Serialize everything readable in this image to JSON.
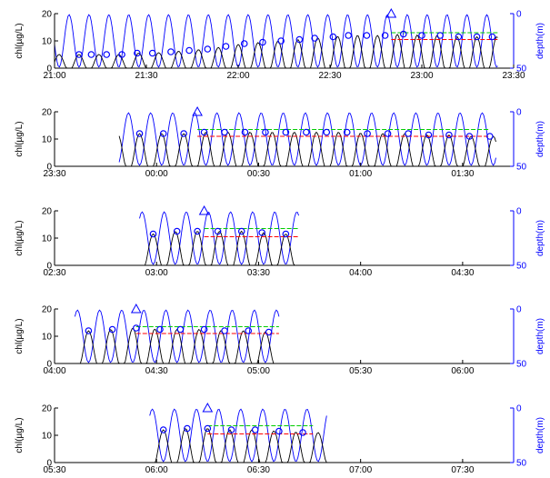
{
  "chart_data": {
    "type": "line",
    "colors": {
      "chl": "#000000",
      "depth": "#0000ff",
      "marker": "#0000ff",
      "upper_ref": "#00cc00",
      "lower_ref": "#ff0000",
      "axis": "#000000",
      "right_axis": "#0000ff"
    },
    "left_ylabel": "chl(µg/L)",
    "right_ylabel": "depth(m)",
    "left_ylim": [
      0,
      20
    ],
    "left_yticks": [
      "0",
      "10",
      "20"
    ],
    "right_ylim": [
      0,
      50
    ],
    "right_yticks": [
      "0",
      "50"
    ],
    "right_axis_reversed": true,
    "panels": [
      {
        "x_ticks": [
          "21:00",
          "21:30",
          "22:00",
          "22:30",
          "23:00",
          "23:30"
        ],
        "x_range": [
          "21:00",
          "23:30"
        ],
        "data_start": "21:00",
        "data_end": "23:25",
        "cycle_minutes": 6.5,
        "chl_markers": [
          {
            "t": "21:08",
            "chl": 5
          },
          {
            "t": "21:12",
            "chl": 5
          },
          {
            "t": "21:17",
            "chl": 5
          },
          {
            "t": "21:22",
            "chl": 5
          },
          {
            "t": "21:27",
            "chl": 5.5
          },
          {
            "t": "21:32",
            "chl": 5.5
          },
          {
            "t": "21:38",
            "chl": 6
          },
          {
            "t": "21:44",
            "chl": 6.5
          },
          {
            "t": "21:50",
            "chl": 7
          },
          {
            "t": "21:56",
            "chl": 8
          },
          {
            "t": "22:02",
            "chl": 9
          },
          {
            "t": "22:08",
            "chl": 9.5
          },
          {
            "t": "22:14",
            "chl": 10
          },
          {
            "t": "22:20",
            "chl": 10.5
          },
          {
            "t": "22:25",
            "chl": 11
          },
          {
            "t": "22:31",
            "chl": 11.5
          },
          {
            "t": "22:36",
            "chl": 12
          },
          {
            "t": "22:42",
            "chl": 12
          },
          {
            "t": "22:48",
            "chl": 12
          },
          {
            "t": "22:54",
            "chl": 12.5
          },
          {
            "t": "23:00",
            "chl": 12
          },
          {
            "t": "23:06",
            "chl": 12
          },
          {
            "t": "23:12",
            "chl": 11.5
          },
          {
            "t": "23:18",
            "chl": 11.5
          },
          {
            "t": "23:23",
            "chl": 11.5
          }
        ],
        "ref_lines": {
          "start": "22:50",
          "end": "23:25",
          "upper": 13,
          "lower": 10.5
        },
        "triangle": {
          "t": "22:50",
          "chl": 20
        }
      },
      {
        "x_ticks": [
          "23:30",
          "00:00",
          "00:30",
          "01:00",
          "01:30"
        ],
        "x_range": [
          "23:30",
          "01:45"
        ],
        "data_start": "23:49",
        "data_end": "01:40",
        "cycle_minutes": 6.5,
        "chl_markers": [
          {
            "t": "23:55",
            "chl": 12
          },
          {
            "t": "00:02",
            "chl": 12
          },
          {
            "t": "00:08",
            "chl": 12
          },
          {
            "t": "00:14",
            "chl": 12.5
          },
          {
            "t": "00:20",
            "chl": 12.5
          },
          {
            "t": "00:26",
            "chl": 12.5
          },
          {
            "t": "00:32",
            "chl": 12.5
          },
          {
            "t": "00:38",
            "chl": 12.5
          },
          {
            "t": "00:44",
            "chl": 12.5
          },
          {
            "t": "00:50",
            "chl": 12.5
          },
          {
            "t": "00:56",
            "chl": 12.5
          },
          {
            "t": "01:02",
            "chl": 12
          },
          {
            "t": "01:08",
            "chl": 12
          },
          {
            "t": "01:14",
            "chl": 12
          },
          {
            "t": "01:20",
            "chl": 11.5
          },
          {
            "t": "01:26",
            "chl": 11.5
          },
          {
            "t": "01:32",
            "chl": 11
          },
          {
            "t": "01:38",
            "chl": 11
          }
        ],
        "ref_lines": {
          "start": "00:12",
          "end": "01:38",
          "upper": 13.5,
          "lower": 11
        },
        "triangle": {
          "t": "00:12",
          "chl": 20
        }
      },
      {
        "x_ticks": [
          "02:30",
          "03:00",
          "03:30",
          "04:00",
          "04:30"
        ],
        "x_range": [
          "02:30",
          "04:45"
        ],
        "data_start": "02:55",
        "data_end": "03:42",
        "cycle_minutes": 6.5,
        "chl_markers": [
          {
            "t": "02:59",
            "chl": 11.5
          },
          {
            "t": "03:06",
            "chl": 12.5
          },
          {
            "t": "03:12",
            "chl": 12.5
          },
          {
            "t": "03:18",
            "chl": 12.5
          },
          {
            "t": "03:25",
            "chl": 12.5
          },
          {
            "t": "03:31",
            "chl": 12
          },
          {
            "t": "03:38",
            "chl": 11.5
          }
        ],
        "ref_lines": {
          "start": "03:14",
          "end": "03:42",
          "upper": 13.5,
          "lower": 10.5
        },
        "triangle": {
          "t": "03:14",
          "chl": 20
        }
      },
      {
        "x_ticks": [
          "04:00",
          "04:30",
          "05:00",
          "05:30",
          "06:00"
        ],
        "x_range": [
          "04:00",
          "06:15"
        ],
        "data_start": "04:06",
        "data_end": "05:06",
        "cycle_minutes": 6.5,
        "chl_markers": [
          {
            "t": "04:10",
            "chl": 12
          },
          {
            "t": "04:17",
            "chl": 12.5
          },
          {
            "t": "04:24",
            "chl": 13
          },
          {
            "t": "04:31",
            "chl": 12.5
          },
          {
            "t": "04:37",
            "chl": 12.5
          },
          {
            "t": "04:44",
            "chl": 12.5
          },
          {
            "t": "04:50",
            "chl": 12
          },
          {
            "t": "04:57",
            "chl": 12
          },
          {
            "t": "05:03",
            "chl": 11.5
          }
        ],
        "ref_lines": {
          "start": "04:24",
          "end": "05:06",
          "upper": 13.5,
          "lower": 11
        },
        "triangle": {
          "t": "04:24",
          "chl": 20
        }
      },
      {
        "x_ticks": [
          "05:30",
          "06:00",
          "06:30",
          "07:00",
          "07:30"
        ],
        "x_range": [
          "05:30",
          "07:45"
        ],
        "data_start": "05:58",
        "data_end": "06:50",
        "cycle_minutes": 6.5,
        "chl_markers": [
          {
            "t": "06:02",
            "chl": 12
          },
          {
            "t": "06:09",
            "chl": 12.5
          },
          {
            "t": "06:15",
            "chl": 12.5
          },
          {
            "t": "06:22",
            "chl": 12
          },
          {
            "t": "06:29",
            "chl": 12
          },
          {
            "t": "06:36",
            "chl": 11.5
          },
          {
            "t": "06:43",
            "chl": 11
          }
        ],
        "ref_lines": {
          "start": "06:15",
          "end": "06:46",
          "upper": 13.5,
          "lower": 10.5
        },
        "triangle": {
          "t": "06:15",
          "chl": 20
        }
      }
    ]
  }
}
